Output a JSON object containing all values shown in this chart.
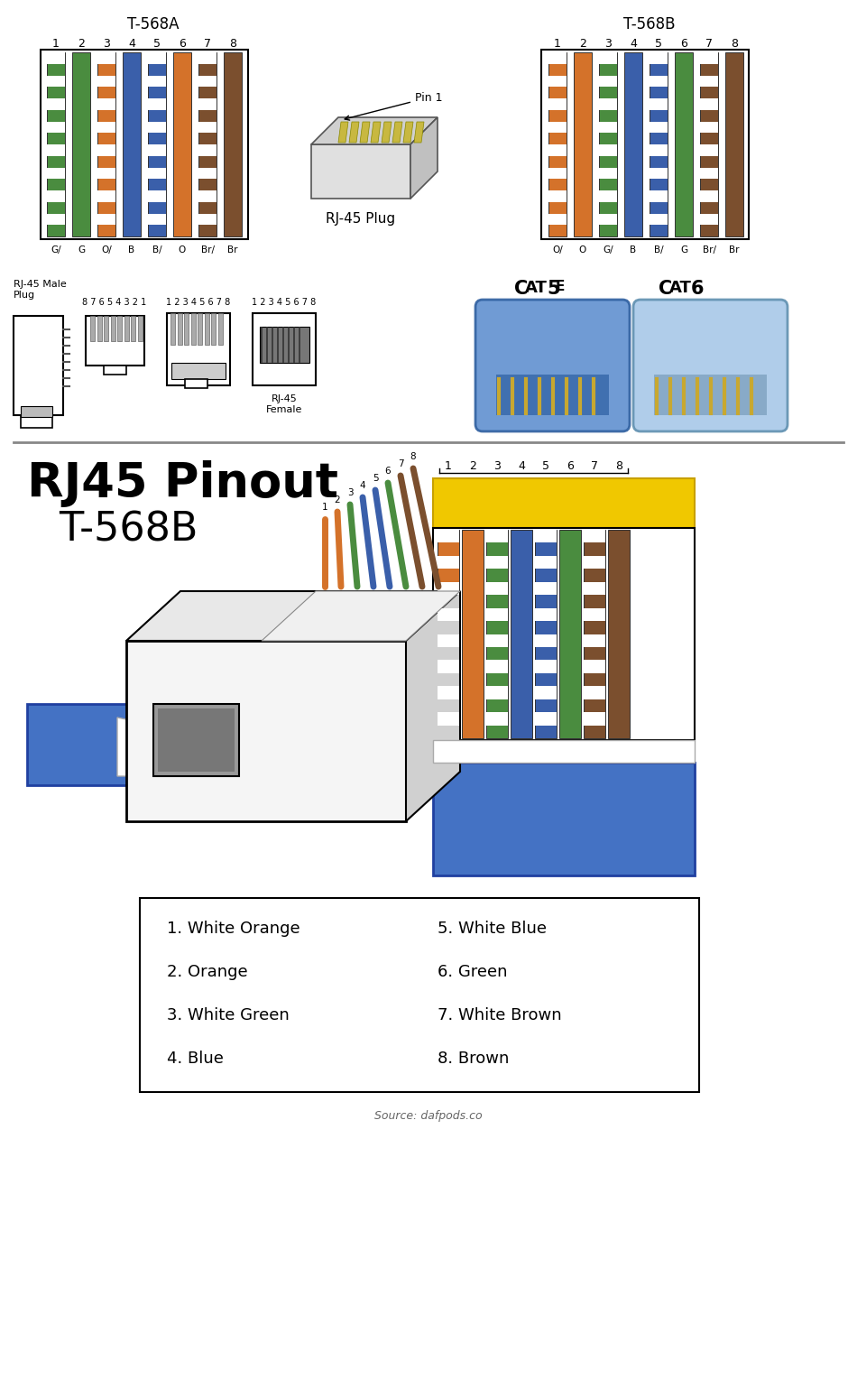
{
  "bg_color": "#ffffff",
  "t568a_label": "T-568A",
  "t568b_label": "T-568B",
  "t568a_pins": [
    "G/",
    "G",
    "O/",
    "B",
    "B/",
    "O",
    "Br/",
    "Br"
  ],
  "t568b_pins": [
    "O/",
    "O",
    "G/",
    "B",
    "B/",
    "G",
    "Br/",
    "Br"
  ],
  "t568a_colors": [
    [
      "#ffffff",
      "#4a8c3f"
    ],
    [
      null,
      "#4a8c3f"
    ],
    [
      "#ffffff",
      "#d4722a"
    ],
    [
      null,
      "#3a5faa"
    ],
    [
      "#ffffff",
      "#3a5faa"
    ],
    [
      null,
      "#d4722a"
    ],
    [
      "#ffffff",
      "#7b4f2e"
    ],
    [
      null,
      "#7b4f2e"
    ]
  ],
  "t568b_colors": [
    [
      "#ffffff",
      "#d4722a"
    ],
    [
      null,
      "#d4722a"
    ],
    [
      "#ffffff",
      "#4a8c3f"
    ],
    [
      null,
      "#3a5faa"
    ],
    [
      "#ffffff",
      "#3a5faa"
    ],
    [
      null,
      "#4a8c3f"
    ],
    [
      "#ffffff",
      "#7b4f2e"
    ],
    [
      null,
      "#7b4f2e"
    ]
  ],
  "pinout_wire_colors": [
    [
      "#ffffff",
      "#d4722a"
    ],
    [
      null,
      "#d4722a"
    ],
    [
      "#ffffff",
      "#4a8c3f"
    ],
    [
      null,
      "#3a5faa"
    ],
    [
      "#ffffff",
      "#3a5faa"
    ],
    [
      null,
      "#4a8c3f"
    ],
    [
      "#ffffff",
      "#7b4f2e"
    ],
    [
      null,
      "#7b4f2e"
    ]
  ],
  "plug3d_wire_colors": [
    "#d4722a",
    "#d4722a",
    "#4a8c3f",
    "#3a5faa",
    "#3a5faa",
    "#4a8c3f",
    "#7b4f2e",
    "#7b4f2e"
  ],
  "legend_left": [
    "1. White Orange",
    "2. Orange",
    "3. White Green",
    "4. Blue"
  ],
  "legend_right": [
    "5. White Blue",
    "6. Green",
    "7. White Brown",
    "8. Brown"
  ],
  "source_text": "Source: dafpods.co",
  "cable_color": "#4472c4"
}
